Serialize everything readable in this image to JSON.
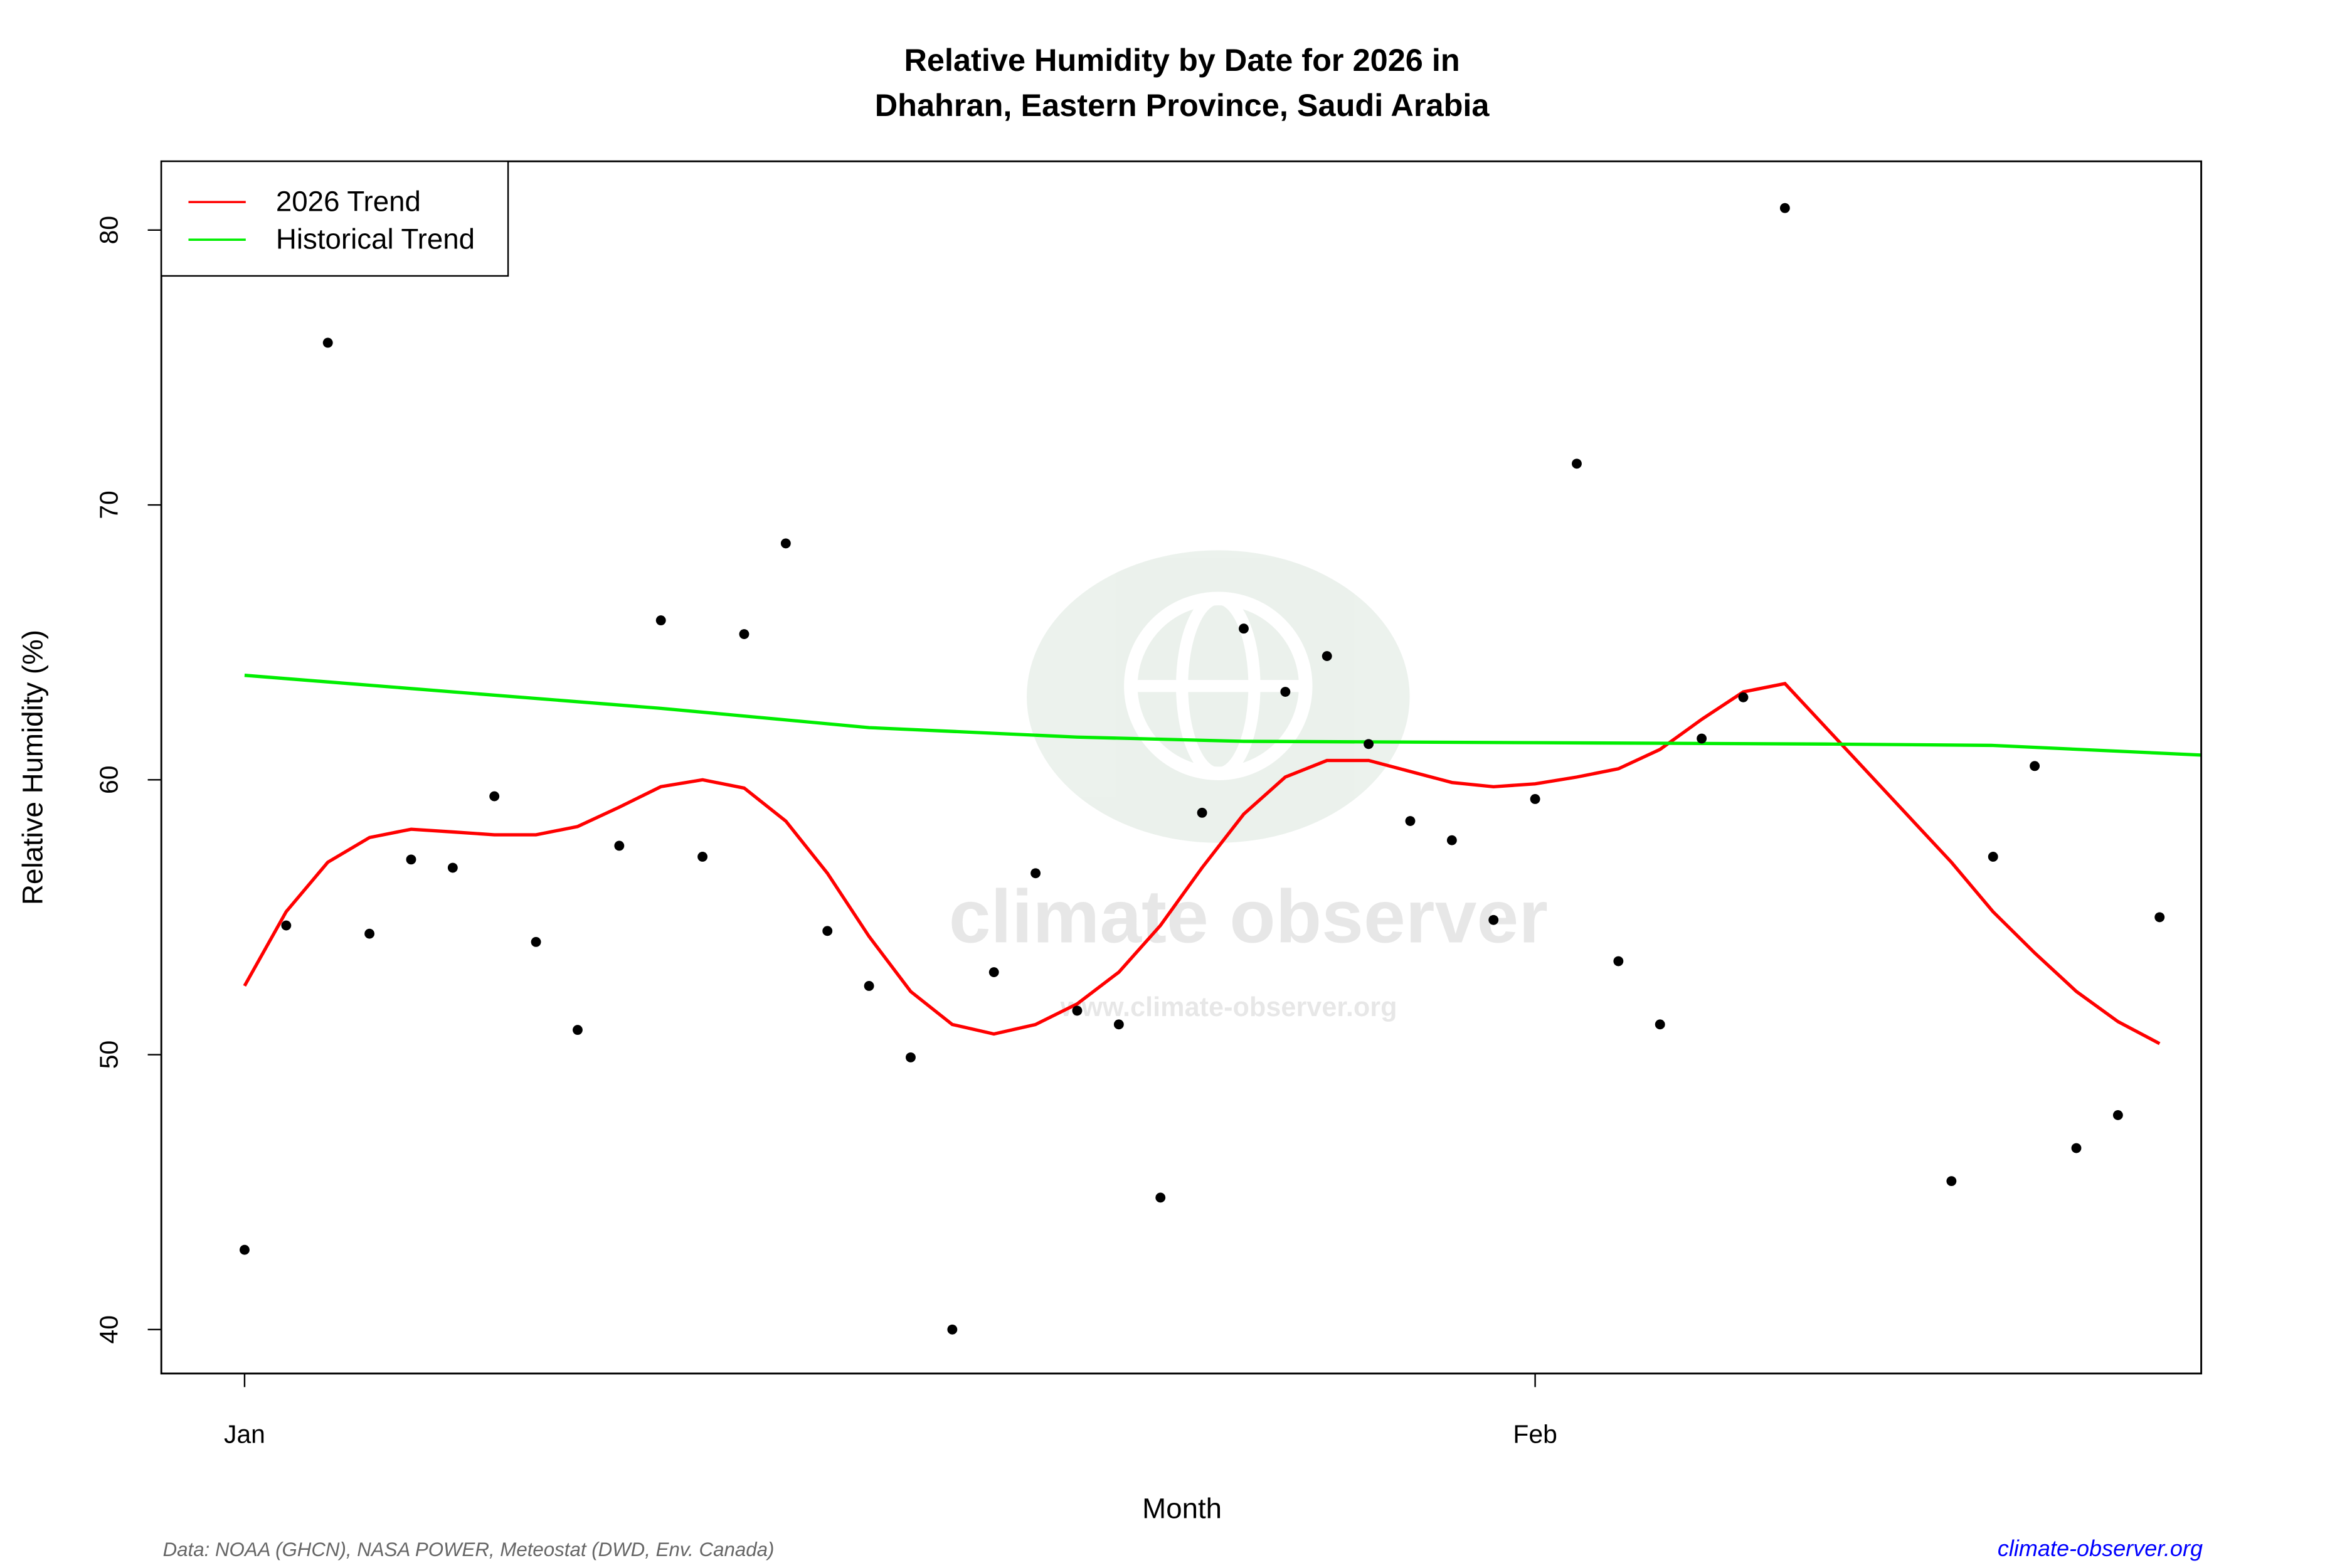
{
  "chart_data": {
    "type": "scatter",
    "title": "Relative Humidity by Date for 2026 in",
    "subtitle": "Dhahran, Eastern Province, Saudi Arabia",
    "xlabel": "Month",
    "ylabel": "Relative Humidity (%)",
    "xlim": [
      "2025-12-30",
      "2026-02-17"
    ],
    "ylim": [
      38.4,
      82.5
    ],
    "x_ticks": [
      {
        "label": "Jan",
        "date": "2026-01-01"
      },
      {
        "label": "Feb",
        "date": "2026-02-01"
      }
    ],
    "y_ticks": [
      40,
      50,
      60,
      70,
      80
    ],
    "grid": false,
    "legend": {
      "placement": "top-left",
      "entries": [
        {
          "label": "2026 Trend",
          "color": "#ff0000"
        },
        {
          "label": "Historical Trend",
          "color": "#00ee00"
        }
      ]
    },
    "points": {
      "color": "#000000",
      "x": [
        "2026-01-01",
        "2026-01-02",
        "2026-01-03",
        "2026-01-04",
        "2026-01-05",
        "2026-01-06",
        "2026-01-07",
        "2026-01-08",
        "2026-01-09",
        "2026-01-10",
        "2026-01-11",
        "2026-01-12",
        "2026-01-13",
        "2026-01-14",
        "2026-01-15",
        "2026-01-16",
        "2026-01-17",
        "2026-01-18",
        "2026-01-19",
        "2026-01-20",
        "2026-01-21",
        "2026-01-22",
        "2026-01-23",
        "2026-01-24",
        "2026-01-25",
        "2026-01-26",
        "2026-01-27",
        "2026-01-28",
        "2026-01-29",
        "2026-01-30",
        "2026-01-31",
        "2026-02-01",
        "2026-02-02",
        "2026-02-03",
        "2026-02-04",
        "2026-02-05",
        "2026-02-06",
        "2026-02-07",
        "2026-02-11",
        "2026-02-12",
        "2026-02-13",
        "2026-02-14",
        "2026-02-15",
        "2026-02-16"
      ],
      "y": [
        42.9,
        54.7,
        75.9,
        54.4,
        57.1,
        56.8,
        59.4,
        54.1,
        50.9,
        57.6,
        65.8,
        57.2,
        65.3,
        68.6,
        54.5,
        52.5,
        49.9,
        40.0,
        53.0,
        56.6,
        51.6,
        51.1,
        44.8,
        58.8,
        65.5,
        63.2,
        64.5,
        61.3,
        58.5,
        57.8,
        54.9,
        59.3,
        71.5,
        53.4,
        51.1,
        61.5,
        63.0,
        80.8,
        45.4,
        57.2,
        60.5,
        46.6,
        47.8,
        55.0
      ]
    },
    "series": [
      {
        "name": "2026 Trend",
        "color": "#ff0000",
        "x": [
          "2026-01-01",
          "2026-01-02",
          "2026-01-03",
          "2026-01-04",
          "2026-01-05",
          "2026-01-06",
          "2026-01-07",
          "2026-01-08",
          "2026-01-09",
          "2026-01-10",
          "2026-01-11",
          "2026-01-12",
          "2026-01-13",
          "2026-01-14",
          "2026-01-15",
          "2026-01-16",
          "2026-01-17",
          "2026-01-18",
          "2026-01-19",
          "2026-01-20",
          "2026-01-21",
          "2026-01-22",
          "2026-01-23",
          "2026-01-24",
          "2026-01-25",
          "2026-01-26",
          "2026-01-27",
          "2026-01-28",
          "2026-01-29",
          "2026-01-30",
          "2026-01-31",
          "2026-02-01",
          "2026-02-02",
          "2026-02-03",
          "2026-02-04",
          "2026-02-05",
          "2026-02-06",
          "2026-02-07",
          "2026-02-11",
          "2026-02-12",
          "2026-02-13",
          "2026-02-14",
          "2026-02-15",
          "2026-02-16"
        ],
        "y": [
          52.5,
          55.2,
          57.0,
          57.9,
          58.2,
          58.1,
          58.0,
          58.0,
          58.3,
          59.0,
          59.75,
          60.0,
          59.7,
          58.5,
          56.6,
          54.3,
          52.3,
          51.1,
          50.75,
          51.1,
          51.85,
          53.0,
          54.7,
          56.8,
          58.75,
          60.1,
          60.7,
          60.7,
          60.3,
          59.9,
          59.75,
          59.85,
          60.1,
          60.4,
          61.1,
          62.2,
          63.2,
          63.5,
          57.0,
          55.2,
          53.7,
          52.3,
          51.2,
          50.4
        ]
      },
      {
        "name": "Historical Trend",
        "color": "#00ee00",
        "x": [
          "2026-01-01",
          "2026-01-06",
          "2026-01-11",
          "2026-01-16",
          "2026-01-21",
          "2026-01-25",
          "2026-02-01",
          "2026-02-08",
          "2026-02-12",
          "2026-02-17"
        ],
        "y": [
          63.8,
          63.2,
          62.6,
          61.9,
          61.55,
          61.4,
          61.35,
          61.3,
          61.25,
          60.9
        ]
      }
    ]
  },
  "footer": {
    "source": "Data: NOAA (GHCN), NASA POWER, Meteostat (DWD, Env. Canada)",
    "site": "climate-observer.org",
    "site_color": "#0000ff"
  },
  "watermark": {
    "name": "climate observer",
    "url": "www.climate-observer.org"
  }
}
